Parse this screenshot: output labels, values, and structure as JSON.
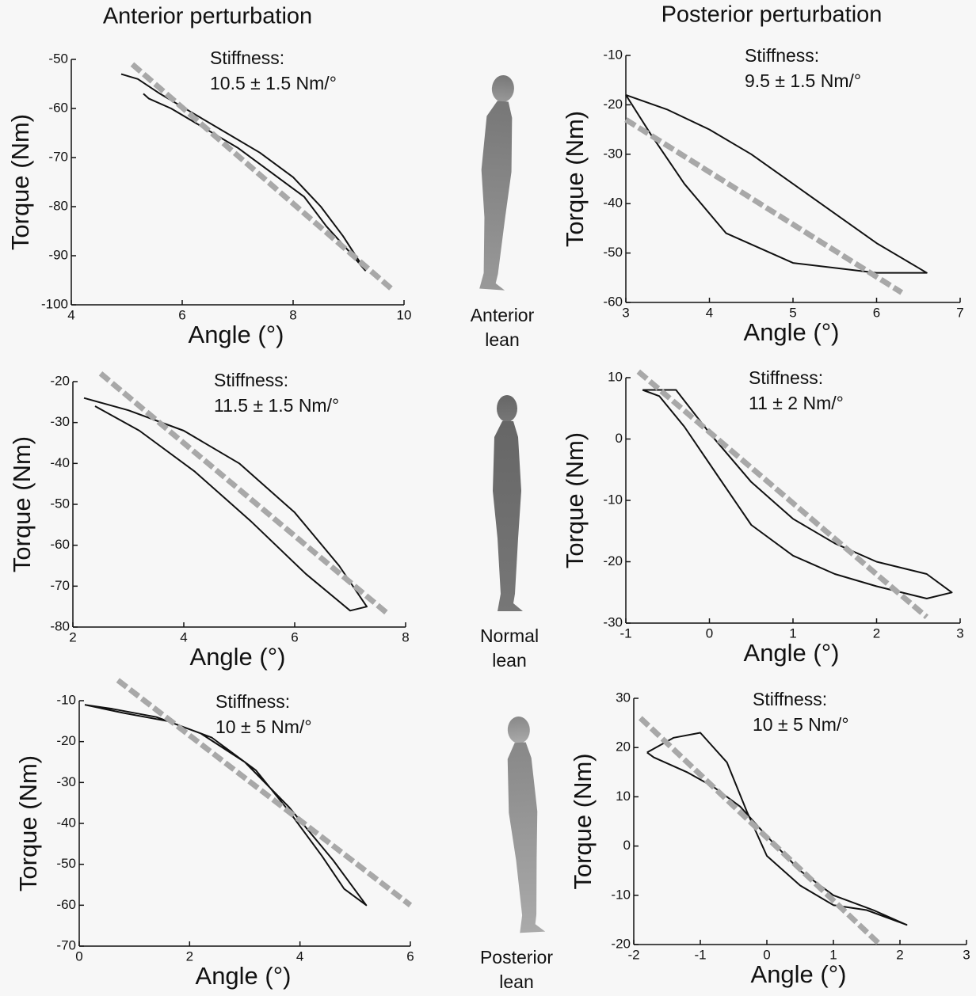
{
  "column_titles": [
    "Anterior perturbation",
    "Posterior perturbation"
  ],
  "figure_labels": [
    [
      "Anterior",
      "lean"
    ],
    [
      "Normal",
      "lean"
    ],
    [
      "Posterior",
      "lean"
    ]
  ],
  "chart_data": [
    {
      "type": "line",
      "xlabel": "Angle (°)",
      "ylabel": "Torque (Nm)",
      "annotations": [
        "Stiffness:",
        "10.5 ± 1.5 Nm/°"
      ],
      "xlim": [
        4,
        10
      ],
      "xticks": [
        4,
        6,
        8,
        10
      ],
      "ylim": [
        -100,
        -50
      ],
      "yticks": [
        -100,
        -90,
        -80,
        -70,
        -60,
        -50
      ],
      "series": [
        {
          "color": "#111111",
          "style": "solid",
          "x": [
            4.9,
            5.2,
            5.6,
            6.2,
            6.8,
            7.4,
            8.0,
            8.5,
            8.9,
            9.3,
            9.0,
            8.6,
            8.2,
            7.6,
            7.0,
            6.4,
            5.8,
            5.4,
            5.3
          ],
          "values": [
            -53,
            -54,
            -57,
            -61,
            -65,
            -69,
            -74,
            -80,
            -86,
            -93,
            -89,
            -84,
            -78,
            -73,
            -68,
            -64,
            -60,
            -58,
            -57
          ]
        },
        {
          "color": "#a8a8a8",
          "style": "dashed",
          "x": [
            5.1,
            9.8
          ],
          "values": [
            -51,
            -97
          ]
        }
      ]
    },
    {
      "type": "line",
      "xlabel": "Angle (°)",
      "ylabel": "Torque (Nm)",
      "annotations": [
        "Stiffness:",
        "9.5 ± 1.5 Nm/°"
      ],
      "xlim": [
        3,
        7
      ],
      "xticks": [
        3,
        4,
        5,
        6,
        7
      ],
      "ylim": [
        -60,
        -10
      ],
      "yticks": [
        -60,
        -50,
        -40,
        -30,
        -20,
        -10
      ],
      "series": [
        {
          "color": "#111111",
          "style": "solid",
          "x": [
            3.0,
            3.5,
            4.0,
            4.5,
            5.0,
            5.5,
            6.0,
            6.5,
            6.6,
            6.0,
            5.0,
            4.2,
            3.7,
            3.3,
            3.0
          ],
          "values": [
            -18,
            -21,
            -25,
            -30,
            -36,
            -42,
            -48,
            -53,
            -54,
            -54,
            -52,
            -46,
            -36,
            -26,
            -18
          ]
        },
        {
          "color": "#a8a8a8",
          "style": "dashed",
          "x": [
            3.0,
            6.3
          ],
          "values": [
            -23,
            -58
          ]
        }
      ]
    },
    {
      "type": "line",
      "xlabel": "Angle (°)",
      "ylabel": "Torque (Nm)",
      "annotations": [
        "Stiffness:",
        "11.5 ± 1.5 Nm/°"
      ],
      "xlim": [
        2,
        8
      ],
      "xticks": [
        2,
        4,
        6,
        8
      ],
      "ylim": [
        -80,
        -20
      ],
      "yticks": [
        -80,
        -70,
        -60,
        -50,
        -40,
        -30,
        -20
      ],
      "series": [
        {
          "color": "#111111",
          "style": "solid",
          "x": [
            2.2,
            3.0,
            4.0,
            5.0,
            6.0,
            6.8,
            7.3,
            7.0,
            6.2,
            5.2,
            4.2,
            3.2,
            2.4
          ],
          "values": [
            -24,
            -27,
            -32,
            -40,
            -52,
            -65,
            -75,
            -76,
            -67,
            -54,
            -42,
            -32,
            -26
          ]
        },
        {
          "color": "#a8a8a8",
          "style": "dashed",
          "x": [
            2.5,
            7.7
          ],
          "values": [
            -18,
            -77
          ]
        }
      ]
    },
    {
      "type": "line",
      "xlabel": "Angle (°)",
      "ylabel": "Torque (Nm)",
      "annotations": [
        "Stiffness:",
        "11 ± 2 Nm/°"
      ],
      "xlim": [
        -1,
        3
      ],
      "xticks": [
        -1,
        0,
        1,
        2,
        3
      ],
      "ylim": [
        -30,
        10
      ],
      "yticks": [
        -30,
        -20,
        -10,
        0,
        10
      ],
      "series": [
        {
          "color": "#111111",
          "style": "solid",
          "x": [
            -0.8,
            -0.4,
            0.0,
            0.5,
            1.0,
            1.5,
            2.0,
            2.6,
            2.9,
            2.6,
            2.0,
            1.5,
            1.0,
            0.5,
            0.1,
            -0.3,
            -0.6,
            -0.8
          ],
          "values": [
            8,
            8,
            1,
            -7,
            -13,
            -17,
            -20,
            -22,
            -25,
            -26,
            -24,
            -22,
            -19,
            -14,
            -6,
            2,
            7,
            8
          ]
        },
        {
          "color": "#a8a8a8",
          "style": "dashed",
          "x": [
            -0.85,
            2.6
          ],
          "values": [
            11,
            -29
          ]
        }
      ]
    },
    {
      "type": "line",
      "xlabel": "Angle (°)",
      "ylabel": "Torque (Nm)",
      "annotations": [
        "Stiffness:",
        "10 ± 5 Nm/°"
      ],
      "xlim": [
        0,
        6
      ],
      "xticks": [
        0,
        2,
        4,
        6
      ],
      "ylim": [
        -70,
        -10
      ],
      "yticks": [
        -70,
        -60,
        -50,
        -40,
        -30,
        -20,
        -10
      ],
      "series": [
        {
          "color": "#111111",
          "style": "solid",
          "x": [
            0.1,
            0.8,
            1.6,
            2.4,
            3.2,
            3.8,
            4.4,
            4.8,
            5.2,
            4.6,
            3.8,
            3.0,
            2.2,
            1.4,
            0.6,
            0.1
          ],
          "values": [
            -11,
            -13,
            -15,
            -19,
            -27,
            -37,
            -48,
            -56,
            -60,
            -49,
            -36,
            -25,
            -18,
            -14,
            -12,
            -11
          ]
        },
        {
          "color": "#a8a8a8",
          "style": "dashed",
          "x": [
            0.7,
            6.0
          ],
          "values": [
            -5,
            -60
          ]
        }
      ]
    },
    {
      "type": "line",
      "xlabel": "Angle (°)",
      "ylabel": "Torque (Nm)",
      "annotations": [
        "Stiffness:",
        "10 ± 5 Nm/°"
      ],
      "xlim": [
        -2,
        3
      ],
      "xticks": [
        -2,
        -1,
        0,
        1,
        2,
        3
      ],
      "ylim": [
        -20,
        30
      ],
      "yticks": [
        -20,
        -10,
        0,
        10,
        20,
        30
      ],
      "series": [
        {
          "color": "#111111",
          "style": "solid",
          "x": [
            -1.8,
            -1.4,
            -1.0,
            -0.6,
            -0.3,
            0.0,
            0.5,
            1.0,
            1.5,
            2.1,
            1.6,
            1.0,
            0.5,
            0.0,
            -0.4,
            -0.8,
            -1.2,
            -1.7,
            -1.8
          ],
          "values": [
            19,
            22,
            23,
            17,
            7,
            -2,
            -8,
            -12,
            -13,
            -16,
            -13,
            -10,
            -5,
            2,
            8,
            12,
            15,
            18,
            19
          ]
        },
        {
          "color": "#a8a8a8",
          "style": "dashed",
          "x": [
            -1.9,
            1.7
          ],
          "values": [
            26,
            -20
          ]
        }
      ]
    }
  ]
}
